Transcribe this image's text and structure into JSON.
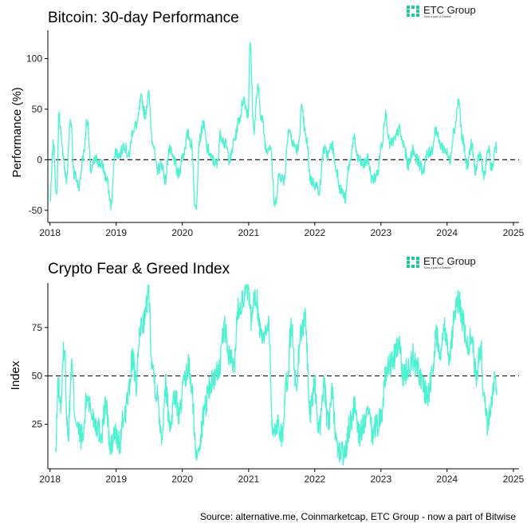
{
  "brand": {
    "name": "ETC Group",
    "tagline": "Now a part of Bitwise",
    "accent_color": "#1ec99a",
    "series_color": "#4cf2d2"
  },
  "source_note": "Source: alternative.me, Coinmarketcap, ETC Group - now a part of Bitwise",
  "chart_data": [
    {
      "type": "line",
      "title": "Bitcoin: 30-day Performance",
      "xlabel": "",
      "ylabel": "Performance (%)",
      "xlim": [
        "2017-12-20",
        "2025-02-01"
      ],
      "ylim": [
        -62,
        128
      ],
      "xticks": [
        "2018",
        "2019",
        "2020",
        "2021",
        "2022",
        "2023",
        "2024",
        "2025"
      ],
      "yticks": [
        -50,
        0,
        50,
        100
      ],
      "reference_line": {
        "y": 0,
        "style": "dashed"
      },
      "grid": false,
      "series": [
        {
          "x": [
            "2018-01-01",
            "2018-01-20",
            "2018-02-06",
            "2018-02-20",
            "2018-03-10",
            "2018-04-01",
            "2018-04-25",
            "2018-05-15",
            "2018-06-10",
            "2018-07-05",
            "2018-07-25",
            "2018-08-15",
            "2018-09-10",
            "2018-10-15",
            "2018-11-10",
            "2018-12-05",
            "2018-12-25",
            "2019-01-20",
            "2019-02-15",
            "2019-03-10",
            "2019-04-05",
            "2019-04-25",
            "2019-05-20",
            "2019-06-10",
            "2019-06-28",
            "2019-07-20",
            "2019-08-15",
            "2019-09-10",
            "2019-09-30",
            "2019-10-20",
            "2019-11-15",
            "2019-12-10",
            "2020-01-05",
            "2020-02-01",
            "2020-02-20",
            "2020-03-15",
            "2020-04-05",
            "2020-04-25",
            "2020-05-20",
            "2020-06-15",
            "2020-07-10",
            "2020-07-30",
            "2020-08-25",
            "2020-09-20",
            "2020-10-15",
            "2020-11-10",
            "2020-12-05",
            "2020-12-30",
            "2021-01-08",
            "2021-01-30",
            "2021-02-20",
            "2021-03-15",
            "2021-04-10",
            "2021-05-01",
            "2021-05-25",
            "2021-06-20",
            "2021-07-15",
            "2021-08-10",
            "2021-09-05",
            "2021-10-01",
            "2021-10-20",
            "2021-11-15",
            "2021-12-10",
            "2022-01-05",
            "2022-01-25",
            "2022-02-20",
            "2022-03-15",
            "2022-04-05",
            "2022-04-30",
            "2022-05-25",
            "2022-06-18",
            "2022-07-10",
            "2022-08-05",
            "2022-08-30",
            "2022-09-25",
            "2022-10-20",
            "2022-11-15",
            "2022-12-10",
            "2023-01-05",
            "2023-01-25",
            "2023-02-20",
            "2023-03-20",
            "2023-04-10",
            "2023-05-05",
            "2023-06-01",
            "2023-06-28",
            "2023-07-20",
            "2023-08-20",
            "2023-09-15",
            "2023-10-10",
            "2023-10-30",
            "2023-11-25",
            "2023-12-20",
            "2024-01-15",
            "2024-02-10",
            "2024-03-05",
            "2024-03-25",
            "2024-04-20",
            "2024-05-15",
            "2024-06-05",
            "2024-06-30",
            "2024-07-25",
            "2024-08-15",
            "2024-09-05",
            "2024-09-25",
            "2024-10-01"
          ],
          "values": [
            -40,
            15,
            -38,
            45,
            10,
            -20,
            40,
            -15,
            -25,
            5,
            40,
            -10,
            0,
            -5,
            -20,
            -45,
            8,
            5,
            15,
            3,
            30,
            35,
            60,
            45,
            65,
            20,
            -10,
            -5,
            -20,
            10,
            0,
            -15,
            5,
            25,
            15,
            -50,
            20,
            35,
            10,
            0,
            -5,
            25,
            15,
            0,
            20,
            40,
            60,
            45,
            115,
            30,
            70,
            40,
            10,
            15,
            -45,
            -15,
            -20,
            30,
            15,
            10,
            50,
            20,
            -20,
            -25,
            -30,
            10,
            5,
            15,
            -10,
            -30,
            -38,
            -5,
            20,
            0,
            -5,
            0,
            -20,
            -15,
            15,
            45,
            15,
            20,
            30,
            15,
            -5,
            10,
            0,
            -10,
            5,
            10,
            30,
            15,
            10,
            0,
            30,
            58,
            20,
            -5,
            15,
            -10,
            5,
            -15,
            10,
            -10,
            15,
            10
          ]
        }
      ]
    },
    {
      "type": "line",
      "title": "Crypto Fear & Greed Index",
      "xlabel": "",
      "ylabel": "Index",
      "xlim": [
        "2017-12-20",
        "2025-02-01"
      ],
      "ylim": [
        2,
        98
      ],
      "xticks": [
        "2018",
        "2019",
        "2020",
        "2021",
        "2022",
        "2023",
        "2024",
        "2025"
      ],
      "yticks": [
        25,
        50,
        75
      ],
      "reference_line": {
        "y": 50,
        "style": "dashed"
      },
      "grid": false,
      "series": [
        {
          "x": [
            "2018-02-01",
            "2018-02-15",
            "2018-03-01",
            "2018-03-20",
            "2018-04-10",
            "2018-05-01",
            "2018-05-20",
            "2018-06-10",
            "2018-07-01",
            "2018-07-25",
            "2018-08-20",
            "2018-09-15",
            "2018-10-10",
            "2018-11-05",
            "2018-12-01",
            "2018-12-25",
            "2019-01-20",
            "2019-02-15",
            "2019-03-10",
            "2019-04-01",
            "2019-04-20",
            "2019-05-15",
            "2019-06-10",
            "2019-06-28",
            "2019-07-20",
            "2019-08-15",
            "2019-09-10",
            "2019-09-30",
            "2019-10-25",
            "2019-11-20",
            "2019-12-15",
            "2020-01-10",
            "2020-02-05",
            "2020-02-25",
            "2020-03-15",
            "2020-04-10",
            "2020-05-05",
            "2020-06-01",
            "2020-06-30",
            "2020-07-25",
            "2020-08-20",
            "2020-09-15",
            "2020-10-10",
            "2020-11-05",
            "2020-12-01",
            "2020-12-25",
            "2021-01-15",
            "2021-02-10",
            "2021-03-05",
            "2021-04-01",
            "2021-04-20",
            "2021-05-15",
            "2021-06-10",
            "2021-07-05",
            "2021-07-30",
            "2021-08-25",
            "2021-09-20",
            "2021-10-15",
            "2021-11-10",
            "2021-12-05",
            "2021-12-30",
            "2022-01-25",
            "2022-02-20",
            "2022-03-15",
            "2022-04-05",
            "2022-04-30",
            "2022-05-25",
            "2022-06-18",
            "2022-07-15",
            "2022-08-10",
            "2022-09-05",
            "2022-10-01",
            "2022-10-25",
            "2022-11-15",
            "2022-12-10",
            "2023-01-05",
            "2023-01-25",
            "2023-02-20",
            "2023-03-15",
            "2023-04-10",
            "2023-05-05",
            "2023-06-01",
            "2023-06-25",
            "2023-07-20",
            "2023-08-20",
            "2023-09-15",
            "2023-10-10",
            "2023-11-01",
            "2023-11-25",
            "2023-12-20",
            "2024-01-15",
            "2024-02-10",
            "2024-03-05",
            "2024-03-25",
            "2024-04-20",
            "2024-05-15",
            "2024-06-10",
            "2024-07-05",
            "2024-07-25",
            "2024-08-10",
            "2024-09-01",
            "2024-09-20",
            "2024-10-01"
          ],
          "values": [
            10,
            45,
            35,
            65,
            20,
            55,
            30,
            20,
            18,
            40,
            30,
            25,
            20,
            35,
            12,
            20,
            15,
            30,
            40,
            60,
            45,
            75,
            80,
            95,
            55,
            40,
            20,
            45,
            25,
            40,
            30,
            45,
            55,
            40,
            10,
            18,
            35,
            45,
            50,
            55,
            75,
            60,
            55,
            85,
            90,
            95,
            80,
            92,
            75,
            70,
            80,
            20,
            25,
            20,
            45,
            75,
            45,
            72,
            80,
            30,
            45,
            22,
            45,
            25,
            40,
            15,
            10,
            10,
            25,
            35,
            20,
            25,
            30,
            20,
            25,
            30,
            50,
            55,
            60,
            65,
            50,
            55,
            60,
            55,
            45,
            40,
            50,
            70,
            65,
            75,
            60,
            80,
            90,
            80,
            65,
            70,
            50,
            65,
            35,
            25,
            35,
            50,
            40
          ]
        }
      ]
    }
  ]
}
